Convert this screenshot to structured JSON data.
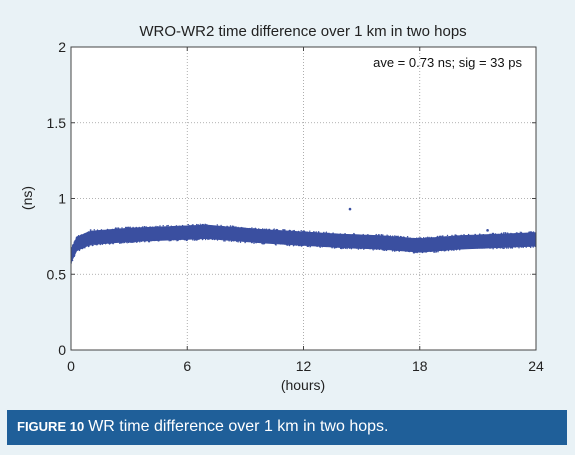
{
  "chart_data": {
    "type": "scatter",
    "title": "WRO-WR2 time difference over 1 km in two hops",
    "xlabel": "(hours)",
    "ylabel": "(ns)",
    "xlim": [
      0,
      24
    ],
    "ylim": [
      0,
      2
    ],
    "xticks": [
      "0",
      "6",
      "12",
      "18",
      "24"
    ],
    "yticks": [
      "0",
      "0.5",
      "1",
      "1.5",
      "2"
    ],
    "annotation": "ave = 0.73 ns; sig = 33 ps",
    "grid": true,
    "marker_color": "#3a4fa0",
    "series": [
      {
        "trend": [
          {
            "x": 0,
            "y": 0.62
          },
          {
            "x": 0.3,
            "y": 0.7
          },
          {
            "x": 1,
            "y": 0.74
          },
          {
            "x": 3,
            "y": 0.76
          },
          {
            "x": 5,
            "y": 0.77
          },
          {
            "x": 6,
            "y": 0.775
          },
          {
            "x": 7,
            "y": 0.78
          },
          {
            "x": 8,
            "y": 0.77
          },
          {
            "x": 10,
            "y": 0.75
          },
          {
            "x": 12,
            "y": 0.735
          },
          {
            "x": 14,
            "y": 0.72
          },
          {
            "x": 16,
            "y": 0.71
          },
          {
            "x": 18,
            "y": 0.69
          },
          {
            "x": 19,
            "y": 0.7
          },
          {
            "x": 20,
            "y": 0.71
          },
          {
            "x": 22,
            "y": 0.72
          },
          {
            "x": 24,
            "y": 0.73
          }
        ],
        "band_halfwidth": 0.045,
        "outliers": [
          {
            "x": 14.4,
            "y": 0.93
          },
          {
            "x": 21.5,
            "y": 0.79
          }
        ]
      }
    ]
  },
  "caption": {
    "label": "FIGURE 10",
    "text": "WR time difference over 1 km in two hops."
  }
}
